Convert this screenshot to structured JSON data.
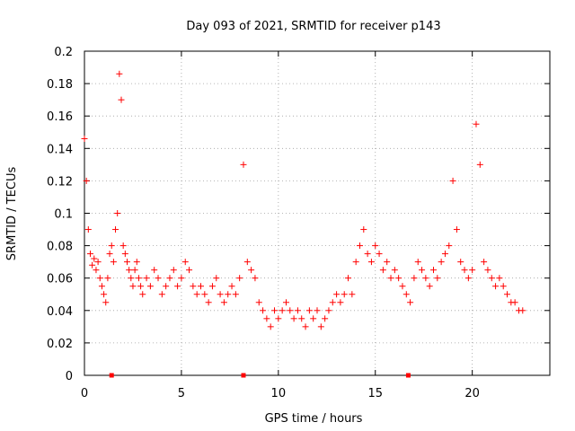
{
  "chart_data": {
    "type": "scatter",
    "title": "Day 093 of 2021, SRMTID for receiver p143",
    "xlabel": "GPS time / hours",
    "ylabel": "SRMTID / TECUs",
    "xlim": [
      0,
      24
    ],
    "ylim": [
      0,
      0.2
    ],
    "x_ticks": [
      0,
      5,
      10,
      15,
      20
    ],
    "x_tick_labels": [
      "0",
      "5",
      "10",
      "15",
      "20"
    ],
    "y_ticks": [
      0,
      0.02,
      0.04,
      0.06,
      0.08,
      0.1,
      0.12,
      0.14,
      0.16,
      0.18,
      0.2
    ],
    "y_tick_labels": [
      "0",
      "0.02",
      "0.04",
      "0.06",
      "0.08",
      "0.1",
      "0.12",
      "0.14",
      "0.16",
      "0.18",
      "0.2"
    ],
    "grid": true,
    "marker": "+",
    "color": "#ff0000",
    "series": [
      {
        "name": "SRMTID",
        "x": [
          0.0,
          0.1,
          0.2,
          0.3,
          0.4,
          0.5,
          0.6,
          0.7,
          0.8,
          0.9,
          1.0,
          1.1,
          1.2,
          1.3,
          1.4,
          1.5,
          1.6,
          1.7,
          1.8,
          1.9,
          2.0,
          2.1,
          2.2,
          2.3,
          2.4,
          2.5,
          2.6,
          2.7,
          2.8,
          2.9,
          3.0,
          3.2,
          3.4,
          3.6,
          3.8,
          4.0,
          4.2,
          4.4,
          4.6,
          4.8,
          5.0,
          5.2,
          5.4,
          5.6,
          5.8,
          6.0,
          6.2,
          6.4,
          6.6,
          6.8,
          7.0,
          7.2,
          7.4,
          7.6,
          7.8,
          8.0,
          8.2,
          8.4,
          8.6,
          8.8,
          9.0,
          9.2,
          9.4,
          9.6,
          9.8,
          10.0,
          10.2,
          10.4,
          10.6,
          10.8,
          11.0,
          11.2,
          11.4,
          11.6,
          11.8,
          12.0,
          12.2,
          12.4,
          12.6,
          12.8,
          13.0,
          13.2,
          13.4,
          13.6,
          13.8,
          14.0,
          14.2,
          14.4,
          14.6,
          14.8,
          15.0,
          15.2,
          15.4,
          15.6,
          15.8,
          16.0,
          16.2,
          16.4,
          16.6,
          16.8,
          17.0,
          17.2,
          17.4,
          17.6,
          17.8,
          18.0,
          18.2,
          18.4,
          18.6,
          18.8,
          19.0,
          19.2,
          19.4,
          19.6,
          19.8,
          20.0,
          20.2,
          20.4,
          20.6,
          20.8,
          21.0,
          21.2,
          21.4,
          21.6,
          21.8,
          22.0,
          22.2,
          22.4,
          22.6
        ],
        "y": [
          0.146,
          0.12,
          0.09,
          0.075,
          0.068,
          0.072,
          0.065,
          0.07,
          0.06,
          0.055,
          0.05,
          0.045,
          0.06,
          0.075,
          0.08,
          0.07,
          0.09,
          0.1,
          0.186,
          0.17,
          0.08,
          0.075,
          0.07,
          0.065,
          0.06,
          0.055,
          0.065,
          0.07,
          0.06,
          0.055,
          0.05,
          0.06,
          0.055,
          0.065,
          0.06,
          0.05,
          0.055,
          0.06,
          0.065,
          0.055,
          0.06,
          0.07,
          0.065,
          0.055,
          0.05,
          0.055,
          0.05,
          0.045,
          0.055,
          0.06,
          0.05,
          0.045,
          0.05,
          0.055,
          0.05,
          0.06,
          0.13,
          0.07,
          0.065,
          0.06,
          0.045,
          0.04,
          0.035,
          0.03,
          0.04,
          0.035,
          0.04,
          0.045,
          0.04,
          0.035,
          0.04,
          0.035,
          0.03,
          0.04,
          0.035,
          0.04,
          0.03,
          0.035,
          0.04,
          0.045,
          0.05,
          0.045,
          0.05,
          0.06,
          0.05,
          0.07,
          0.08,
          0.09,
          0.075,
          0.07,
          0.08,
          0.075,
          0.065,
          0.07,
          0.06,
          0.065,
          0.06,
          0.055,
          0.05,
          0.045,
          0.06,
          0.07,
          0.065,
          0.06,
          0.055,
          0.065,
          0.06,
          0.07,
          0.075,
          0.08,
          0.12,
          0.09,
          0.07,
          0.065,
          0.06,
          0.065,
          0.155,
          0.13,
          0.07,
          0.065,
          0.06,
          0.055,
          0.06,
          0.055,
          0.05,
          0.045,
          0.045,
          0.04,
          0.04
        ]
      }
    ],
    "marker_ticks_x": [
      1.4,
      8.2,
      16.7
    ]
  }
}
